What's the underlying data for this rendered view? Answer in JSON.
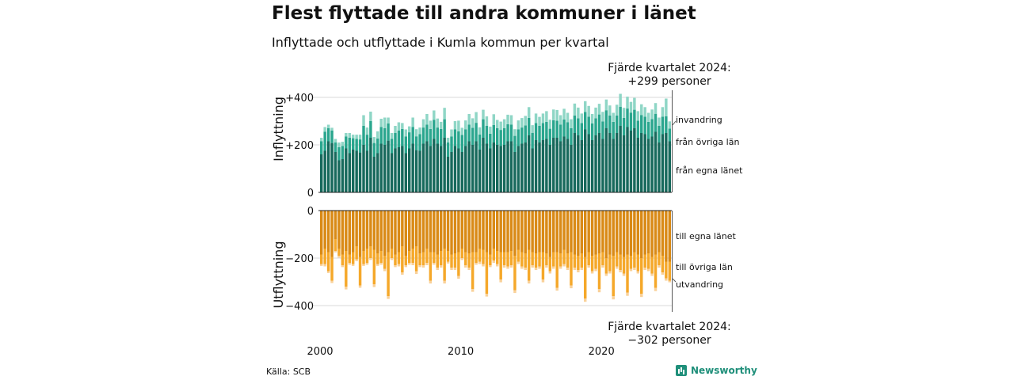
{
  "title": "Flest flyttade till andra kommuner i länet",
  "subtitle": "Inflyttade och utflyttade i Kumla kommun per kvartal",
  "note_top": [
    "Fjärde kvartalet 2024:",
    "+299 personer"
  ],
  "note_bottom": [
    "Fjärde kvartalet 2024:",
    "−302 personer"
  ],
  "source": "Källa: SCB",
  "brand": "Newsworthy",
  "colors": {
    "in_egna": "#17695c",
    "in_ovriga": "#2aa68e",
    "in_invandring": "#8fd6c6",
    "out_egna": "#d98a16",
    "out_ovriga": "#f5a82a",
    "out_utvandring": "#f9d199",
    "grid": "#d9d9d9",
    "axis": "#222222"
  },
  "chart_data": [
    {
      "type": "bar",
      "stacked": true,
      "ylabel": "Inflyttning",
      "ylim": [
        0,
        400
      ],
      "yticks": [
        "0",
        "+200",
        "+400"
      ],
      "x_start": "2000-Q1",
      "x_end": "2024-Q4",
      "x_ticks": [
        "2000",
        "2010",
        "2020"
      ],
      "series": [
        {
          "name": "från egna länet",
          "values": [
            160,
            175,
            215,
            208,
            170,
            135,
            140,
            185,
            165,
            180,
            175,
            168,
            200,
            175,
            230,
            150,
            165,
            205,
            200,
            218,
            165,
            185,
            190,
            195,
            165,
            185,
            205,
            178,
            175,
            205,
            215,
            195,
            225,
            205,
            195,
            230,
            150,
            170,
            195,
            185,
            170,
            195,
            215,
            200,
            215,
            180,
            230,
            205,
            185,
            210,
            200,
            195,
            200,
            215,
            215,
            170,
            195,
            205,
            210,
            240,
            185,
            220,
            210,
            220,
            225,
            200,
            230,
            230,
            215,
            235,
            225,
            200,
            250,
            240,
            220,
            265,
            245,
            220,
            240,
            250,
            225,
            270,
            250,
            225,
            250,
            280,
            240,
            275,
            260,
            270,
            230,
            250,
            245,
            225,
            235,
            255,
            210,
            245,
            250,
            215
          ]
        },
        {
          "name": "från övriga län",
          "values": [
            55,
            80,
            55,
            52,
            40,
            55,
            55,
            50,
            65,
            48,
            50,
            55,
            80,
            68,
            70,
            58,
            62,
            70,
            70,
            72,
            60,
            65,
            70,
            72,
            70,
            68,
            70,
            58,
            70,
            68,
            70,
            72,
            80,
            68,
            72,
            78,
            60,
            65,
            70,
            72,
            72,
            70,
            70,
            72,
            78,
            64,
            78,
            75,
            62,
            74,
            70,
            68,
            70,
            72,
            70,
            68,
            70,
            68,
            72,
            74,
            66,
            72,
            70,
            72,
            72,
            68,
            74,
            72,
            70,
            72,
            70,
            70,
            74,
            72,
            72,
            74,
            74,
            70,
            72,
            78,
            74,
            76,
            74,
            72,
            74,
            80,
            74,
            78,
            76,
            78,
            72,
            76,
            74,
            72,
            74,
            76,
            70,
            74,
            70,
            54
          ]
        },
        {
          "name": "invandring",
          "values": [
            15,
            20,
            15,
            12,
            15,
            20,
            18,
            15,
            20,
            15,
            18,
            20,
            45,
            30,
            40,
            25,
            30,
            35,
            45,
            25,
            25,
            30,
            35,
            25,
            30,
            25,
            40,
            30,
            28,
            35,
            45,
            35,
            40,
            38,
            30,
            48,
            20,
            30,
            35,
            45,
            30,
            38,
            45,
            40,
            45,
            30,
            40,
            40,
            30,
            45,
            35,
            35,
            38,
            40,
            40,
            28,
            38,
            40,
            40,
            45,
            32,
            40,
            38,
            40,
            45,
            38,
            45,
            45,
            40,
            45,
            40,
            38,
            50,
            45,
            40,
            45,
            45,
            40,
            45,
            45,
            40,
            45,
            42,
            38,
            45,
            55,
            42,
            50,
            45,
            50,
            40,
            45,
            40,
            38,
            40,
            45,
            35,
            40,
            75,
            30
          ]
        }
      ]
    },
    {
      "type": "bar",
      "stacked": true,
      "ylabel": "Utflyttning",
      "ylim": [
        -400,
        0
      ],
      "yticks": [
        "0",
        "−200",
        "−400"
      ],
      "x_start": "2000-Q1",
      "x_end": "2024-Q4",
      "x_ticks": [
        "2000",
        "2010",
        "2020"
      ],
      "series": [
        {
          "name": "till egna länet",
          "values": [
            -185,
            -160,
            -175,
            -195,
            -120,
            -160,
            -185,
            -170,
            -185,
            -175,
            -150,
            -195,
            -170,
            -160,
            -150,
            -165,
            -180,
            -170,
            -190,
            -175,
            -160,
            -185,
            -175,
            -150,
            -190,
            -170,
            -160,
            -150,
            -180,
            -175,
            -160,
            -175,
            -175,
            -185,
            -170,
            -160,
            -170,
            -185,
            -180,
            -175,
            -160,
            -175,
            -180,
            -175,
            -175,
            -160,
            -165,
            -175,
            -185,
            -160,
            -170,
            -175,
            -175,
            -175,
            -170,
            -190,
            -165,
            -175,
            -180,
            -165,
            -175,
            -180,
            -175,
            -175,
            -180,
            -195,
            -175,
            -175,
            -180,
            -165,
            -180,
            -175,
            -185,
            -190,
            -180,
            -195,
            -175,
            -190,
            -185,
            -180,
            -175,
            -200,
            -185,
            -190,
            -175,
            -185,
            -195,
            -185,
            -190,
            -175,
            -185,
            -200,
            -185,
            -180,
            -195,
            -185,
            -175,
            -190,
            -215,
            -215
          ]
        },
        {
          "name": "till övriga län",
          "values": [
            -40,
            -65,
            -80,
            -100,
            -50,
            -30,
            -45,
            -150,
            -35,
            -50,
            -55,
            -120,
            -55,
            -60,
            -50,
            -145,
            -45,
            -50,
            -55,
            -185,
            -40,
            -45,
            -50,
            -110,
            -40,
            -50,
            -60,
            -105,
            -50,
            -55,
            -60,
            -120,
            -45,
            -55,
            -60,
            -135,
            -45,
            -55,
            -60,
            -100,
            -40,
            -55,
            -60,
            -155,
            -45,
            -55,
            -60,
            -175,
            -45,
            -50,
            -55,
            -115,
            -55,
            -60,
            -60,
            -145,
            -50,
            -60,
            -60,
            -130,
            -55,
            -60,
            -60,
            -115,
            -50,
            -60,
            -60,
            -150,
            -55,
            -60,
            -60,
            -140,
            -55,
            -60,
            -60,
            -175,
            -55,
            -65,
            -60,
            -150,
            -55,
            -65,
            -70,
            -170,
            -60,
            -65,
            -70,
            -160,
            -55,
            -65,
            -70,
            -150,
            -55,
            -65,
            -70,
            -140,
            -55,
            -70,
            -70,
            -80
          ]
        },
        {
          "name": "utvandring",
          "values": [
            -8,
            -10,
            -8,
            -10,
            -6,
            -8,
            -8,
            -12,
            -8,
            -8,
            -8,
            -10,
            -8,
            -8,
            -8,
            -12,
            -8,
            -8,
            -10,
            -12,
            -8,
            -8,
            -10,
            -10,
            -8,
            -8,
            -10,
            -12,
            -8,
            -10,
            -10,
            -12,
            -8,
            -10,
            -10,
            -12,
            -8,
            -10,
            -10,
            -12,
            -8,
            -10,
            -10,
            -12,
            -8,
            -10,
            -10,
            -12,
            -8,
            -10,
            -10,
            -12,
            -10,
            -10,
            -10,
            -12,
            -10,
            -10,
            -10,
            -12,
            -10,
            -10,
            -10,
            -12,
            -10,
            -10,
            -10,
            -12,
            -10,
            -10,
            -10,
            -12,
            -10,
            -10,
            -10,
            -14,
            -10,
            -10,
            -10,
            -14,
            -10,
            -10,
            -10,
            -14,
            -10,
            -10,
            -10,
            -14,
            -10,
            -10,
            -10,
            -14,
            -10,
            -10,
            -10,
            -14,
            -10,
            -10,
            -10,
            -7
          ]
        }
      ]
    }
  ]
}
